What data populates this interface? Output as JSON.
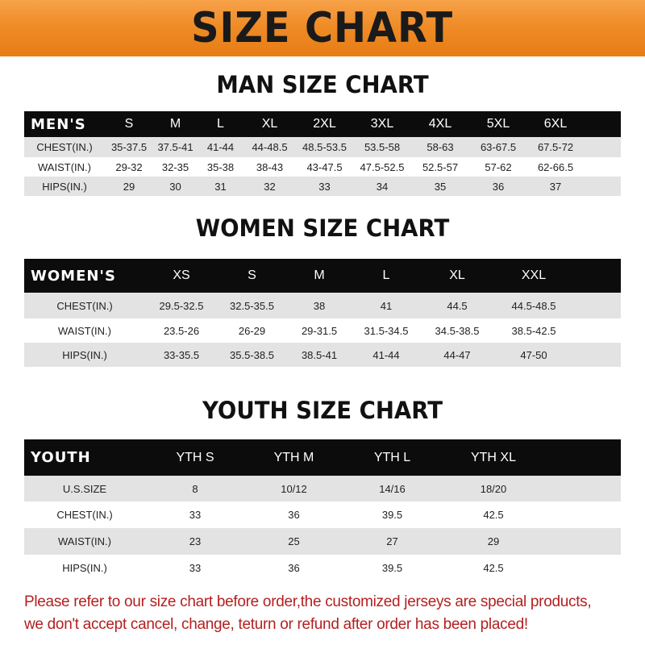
{
  "banner_title": "SIZE CHART",
  "men": {
    "title": "MAN SIZE CHART",
    "header": [
      "MEN'S",
      "S",
      "M",
      "L",
      "XL",
      "2XL",
      "3XL",
      "4XL",
      "5XL",
      "6XL"
    ],
    "rows": [
      [
        "CHEST(IN.)",
        "35-37.5",
        "37.5-41",
        "41-44",
        "44-48.5",
        "48.5-53.5",
        "53.5-58",
        "58-63",
        "63-67.5",
        "67.5-72"
      ],
      [
        "WAIST(IN.)",
        "29-32",
        "32-35",
        "35-38",
        "38-43",
        "43-47.5",
        "47.5-52.5",
        "52.5-57",
        "57-62",
        "62-66.5"
      ],
      [
        "HIPS(IN.)",
        "29",
        "30",
        "31",
        "32",
        "33",
        "34",
        "35",
        "36",
        "37"
      ]
    ]
  },
  "women": {
    "title": "WOMEN SIZE CHART",
    "header": [
      "WOMEN'S",
      "XS",
      "S",
      "M",
      "L",
      "XL",
      "XXL"
    ],
    "rows": [
      [
        "CHEST(IN.)",
        "29.5-32.5",
        "32.5-35.5",
        "38",
        "41",
        "44.5",
        "44.5-48.5"
      ],
      [
        "WAIST(IN.)",
        "23.5-26",
        "26-29",
        "29-31.5",
        "31.5-34.5",
        "34.5-38.5",
        "38.5-42.5"
      ],
      [
        "HIPS(IN.)",
        "33-35.5",
        "35.5-38.5",
        "38.5-41",
        "41-44",
        "44-47",
        "47-50"
      ]
    ]
  },
  "youth": {
    "title": "YOUTH SIZE CHART",
    "header": [
      "YOUTH",
      "YTH S",
      "YTH M",
      "YTH L",
      "YTH XL"
    ],
    "rows": [
      [
        "U.S.SIZE",
        "8",
        "10/12",
        "14/16",
        "18/20"
      ],
      [
        "CHEST(IN.)",
        "33",
        "36",
        "39.5",
        "42.5"
      ],
      [
        "WAIST(IN.)",
        "23",
        "25",
        "27",
        "29"
      ],
      [
        "HIPS(IN.)",
        "33",
        "36",
        "39.5",
        "42.5"
      ]
    ]
  },
  "notice": [
    "Please refer to our size chart before order,the customized jerseys are special products,",
    "we don't accept cancel, change, teturn or refund after order has been placed!"
  ],
  "colors": {
    "banner": "#ee8a24",
    "header_row": "#0c0c0c",
    "stripe": "#e3e3e3",
    "notice": "#b42020"
  }
}
